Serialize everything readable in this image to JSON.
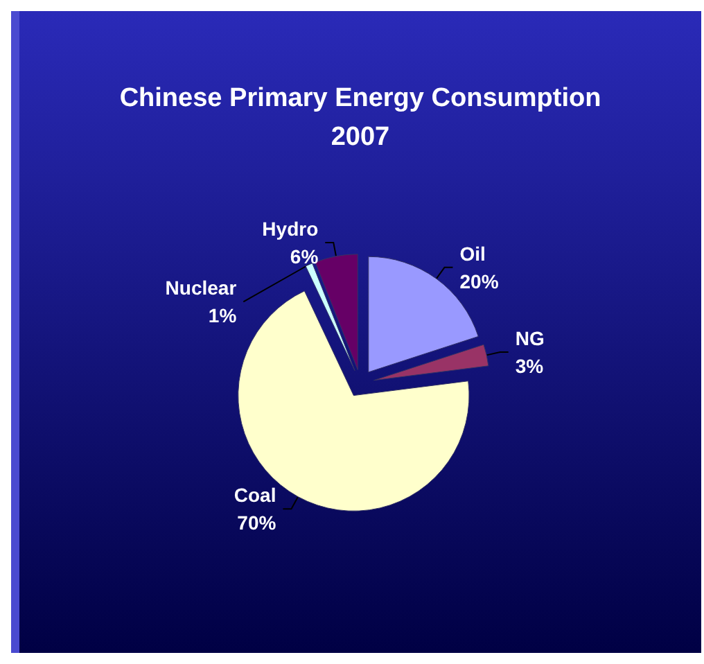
{
  "chart_data": {
    "type": "pie",
    "title": "Chinese Primary Energy Consumption\n2007",
    "categories": [
      "Oil",
      "NG",
      "Coal",
      "Nuclear",
      "Hydro"
    ],
    "values": [
      20,
      3,
      70,
      1,
      6
    ],
    "colors": [
      "#9999ff",
      "#993366",
      "#ffffcc",
      "#ccffff",
      "#660066"
    ],
    "value_labels": [
      "20%",
      "3%",
      "70%",
      "1%",
      "6%"
    ],
    "legend": false
  }
}
